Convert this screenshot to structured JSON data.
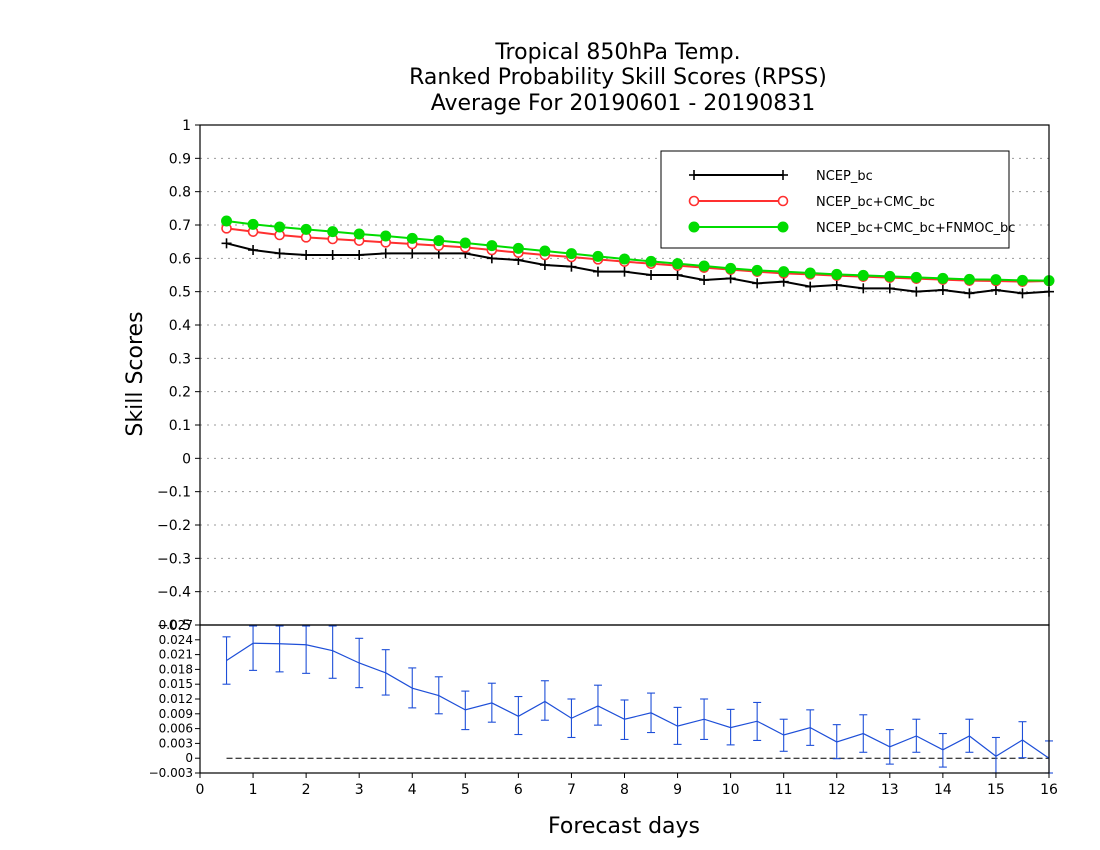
{
  "chart_data": [
    {
      "type": "line",
      "title": [
        "Tropical 850hPa Temp.",
        "Ranked Probability Skill Scores (RPSS)",
        "Average For 20190601 - 20190831"
      ],
      "ylabel": "Skill Scores",
      "ylim": [
        -0.5,
        1
      ],
      "yticks": [
        "1",
        "0.9",
        "0.8",
        "0.7",
        "0.6",
        "0.5",
        "0.4",
        "0.3",
        "0.2",
        "0.1",
        "0",
        "−0.1",
        "−0.2",
        "−0.3",
        "−0.4",
        "−0.5"
      ],
      "xlim": [
        0,
        16
      ],
      "grid": true,
      "legend_position": "top-right",
      "x": [
        0.5,
        1,
        1.5,
        2,
        2.5,
        3,
        3.5,
        4,
        4.5,
        5,
        5.5,
        6,
        6.5,
        7,
        7.5,
        8,
        8.5,
        9,
        9.5,
        10,
        10.5,
        11,
        11.5,
        12,
        12.5,
        13,
        13.5,
        14,
        14.5,
        15,
        15.5,
        16
      ],
      "series": [
        {
          "name": "NCEP_bc",
          "color": "#000000",
          "marker": "plus",
          "values": [
            0.645,
            0.625,
            0.615,
            0.61,
            0.61,
            0.61,
            0.615,
            0.615,
            0.615,
            0.615,
            0.6,
            0.595,
            0.58,
            0.575,
            0.56,
            0.56,
            0.55,
            0.55,
            0.535,
            0.54,
            0.525,
            0.53,
            0.515,
            0.52,
            0.51,
            0.51,
            0.5,
            0.505,
            0.495,
            0.505,
            0.495,
            0.5
          ]
        },
        {
          "name": "NCEP_bc+CMC_bc",
          "color": "#ff3030",
          "marker": "open-circle",
          "values": [
            0.69,
            0.68,
            0.67,
            0.663,
            0.658,
            0.653,
            0.648,
            0.643,
            0.638,
            0.633,
            0.625,
            0.617,
            0.61,
            0.604,
            0.597,
            0.59,
            0.584,
            0.578,
            0.572,
            0.566,
            0.56,
            0.555,
            0.552,
            0.548,
            0.545,
            0.542,
            0.539,
            0.536,
            0.533,
            0.532,
            0.53,
            0.532
          ]
        },
        {
          "name": "NCEP_bc+CMC_bc+FNMOC_bc",
          "color": "#00dc00",
          "marker": "filled-circle",
          "values": [
            0.712,
            0.702,
            0.694,
            0.687,
            0.68,
            0.673,
            0.667,
            0.66,
            0.653,
            0.646,
            0.638,
            0.63,
            0.622,
            0.614,
            0.606,
            0.598,
            0.591,
            0.584,
            0.577,
            0.57,
            0.564,
            0.56,
            0.556,
            0.552,
            0.549,
            0.546,
            0.543,
            0.54,
            0.537,
            0.536,
            0.534,
            0.533
          ]
        }
      ]
    },
    {
      "type": "line",
      "xlabel": "Forecast days",
      "xticks": [
        "0",
        "1",
        "2",
        "3",
        "4",
        "5",
        "6",
        "7",
        "8",
        "9",
        "10",
        "11",
        "12",
        "13",
        "14",
        "15",
        "16"
      ],
      "ylim": [
        -0.003,
        0.027
      ],
      "yticks": [
        "0.027",
        "0.024",
        "0.021",
        "0.018",
        "0.015",
        "0.012",
        "0.009",
        "0.006",
        "0.003",
        "0",
        "−0.003"
      ],
      "x": [
        0.5,
        1,
        1.5,
        2,
        2.5,
        3,
        3.5,
        4,
        4.5,
        5,
        5.5,
        6,
        6.5,
        7,
        7.5,
        8,
        8.5,
        9,
        9.5,
        10,
        10.5,
        11,
        11.5,
        12,
        12.5,
        13,
        13.5,
        14,
        14.5,
        15,
        15.5,
        16
      ],
      "series": [
        {
          "color": "#1e4fd8",
          "values": [
            0.0198,
            0.0233,
            0.0232,
            0.023,
            0.0218,
            0.0193,
            0.0173,
            0.0142,
            0.0127,
            0.0098,
            0.0112,
            0.0085,
            0.0115,
            0.0081,
            0.0106,
            0.0079,
            0.0092,
            0.0065,
            0.0079,
            0.0062,
            0.0075,
            0.0047,
            0.0062,
            0.0033,
            0.005,
            0.0023,
            0.0045,
            0.0017,
            0.0045,
            0.0004,
            0.0037,
            0
          ],
          "err_low": [
            0.015,
            0.0178,
            0.0175,
            0.0172,
            0.0162,
            0.0143,
            0.0128,
            0.0102,
            0.009,
            0.0058,
            0.0073,
            0.0048,
            0.0077,
            0.0042,
            0.0067,
            0.0038,
            0.0052,
            0.0028,
            0.0038,
            0.0027,
            0.0036,
            0.0014,
            0.0026,
            -0.0001,
            0.0012,
            -0.0012,
            0.0012,
            -0.0018,
            0.0012,
            -0.0032,
            0.0001,
            -0.0035
          ],
          "err_high": [
            0.0246,
            0.029,
            0.029,
            0.029,
            0.0275,
            0.0243,
            0.022,
            0.0183,
            0.0165,
            0.0136,
            0.0152,
            0.0125,
            0.0157,
            0.012,
            0.0148,
            0.0118,
            0.0132,
            0.0103,
            0.012,
            0.0099,
            0.0113,
            0.0079,
            0.0098,
            0.0068,
            0.0088,
            0.0058,
            0.0079,
            0.005,
            0.0079,
            0.0042,
            0.0074,
            0.0035
          ]
        }
      ]
    }
  ]
}
